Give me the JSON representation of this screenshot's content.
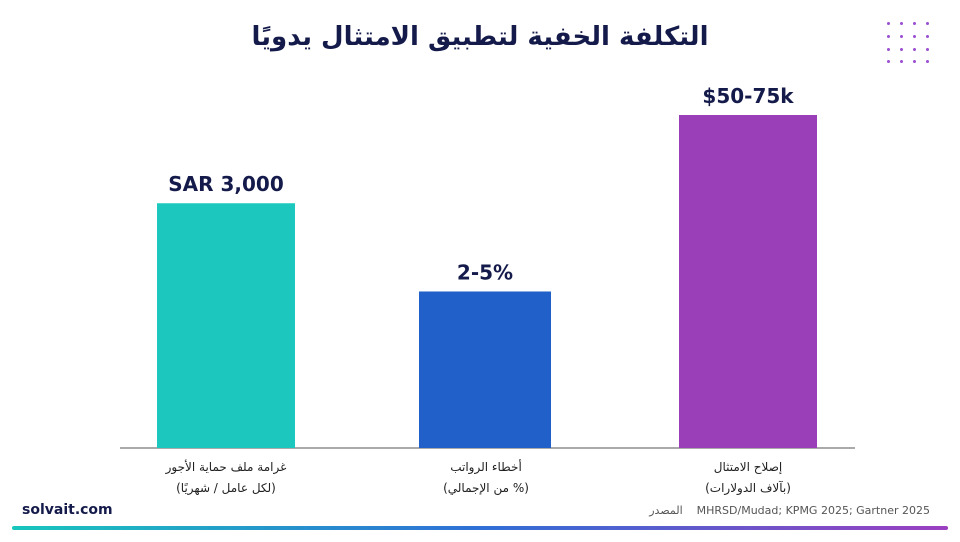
{
  "header": {
    "title": "التكلفة الخفية لتطبيق الامتثال يدويًا"
  },
  "chart_data": {
    "type": "bar",
    "categories": [
      {
        "line1": "غرامة ملف حماية الأجور",
        "line2": "(لكل عامل / شهريًا)"
      },
      {
        "line1": "أخطاء الرواتب",
        "line2": "(% من الإجمالي)"
      },
      {
        "line1": "إصلاح الامتثال",
        "line2": "(بآلاف الدولارات)"
      }
    ],
    "values": [
      3000,
      3.5,
      62.5
    ],
    "data_labels": [
      "SAR 3,000",
      "2-5%",
      "$50-75k"
    ],
    "colors": [
      "#1cc8bd",
      "#2060c8",
      "#9b3fb8"
    ],
    "grid": false
  },
  "footer": {
    "brand": "solvait.com",
    "source_label": "المصدر",
    "source_text": "MHRSD/Mudad; KPMG 2025; Gartner 2025"
  },
  "colors": {
    "title": "#141a4a",
    "accent_gradient": [
      "#19c6bd",
      "#2f6fd6",
      "#9b3fc0"
    ]
  }
}
